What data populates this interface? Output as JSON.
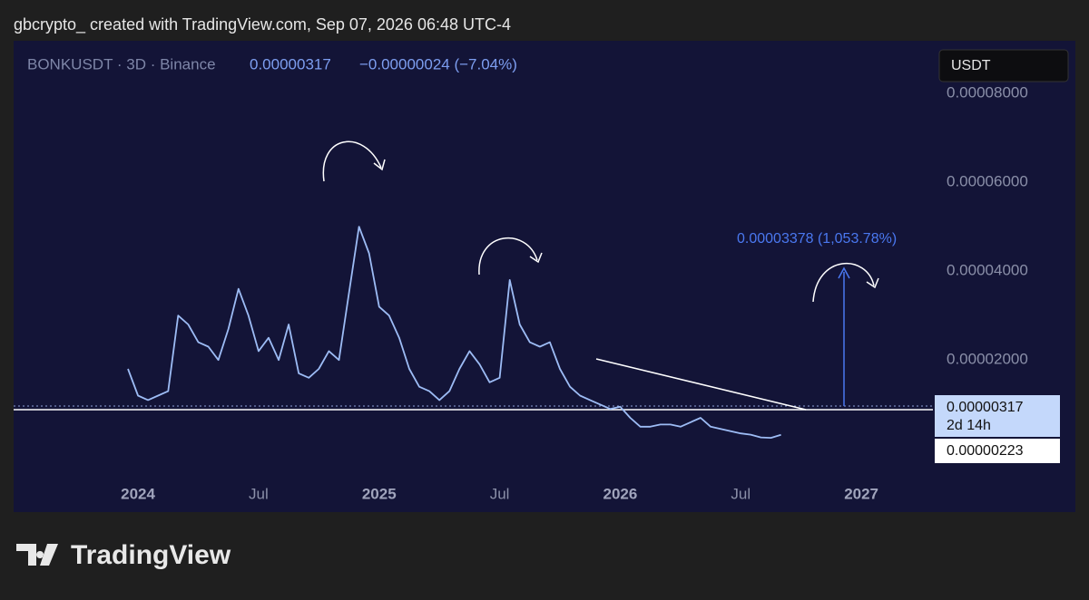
{
  "header": "gbcrypto_ created with TradingView.com, Sep 07, 2026 06:48 UTC-4",
  "footer": "TradingView",
  "chart_data": {
    "type": "line",
    "symbol": "BONKUSDT · 3D · Binance",
    "price": "0.00000317",
    "change": "−0.00000024 (−7.04%)",
    "currency": "USDT",
    "price_label": "0.00000317",
    "countdown": "2d 14h",
    "support_label": "0.00000223",
    "target_annotation": "0.00003378 (1,053.78%)",
    "categories": [
      null,
      "2024",
      null,
      null,
      null,
      null,
      null,
      null,
      null,
      null,
      null,
      null,
      null,
      "Jul",
      null,
      null,
      null,
      null,
      null,
      null,
      null,
      null,
      null,
      null,
      null,
      "2025",
      null,
      null,
      null,
      null,
      null,
      null,
      null,
      null,
      null,
      null,
      null,
      "Jul",
      null,
      null,
      null,
      null,
      null,
      null,
      null,
      null,
      null,
      null,
      null,
      "2026",
      null,
      null,
      null,
      null,
      null,
      null,
      null,
      null,
      null,
      null,
      null,
      "Jul",
      null,
      null,
      null,
      null,
      null,
      null,
      null,
      null,
      null,
      null,
      null,
      "2027",
      null,
      null,
      null,
      null,
      null
    ],
    "series": [
      {
        "name": "BONKUSDT",
        "color": "#9dbcf5",
        "values": [
          1.8e-05,
          1.2e-05,
          1.1e-05,
          1.2e-05,
          1.3e-05,
          3e-05,
          2.8e-05,
          2.4e-05,
          2.3e-05,
          2e-05,
          2.7e-05,
          3.6e-05,
          3e-05,
          2.2e-05,
          2.5e-05,
          2e-05,
          2.8e-05,
          1.7e-05,
          1.6e-05,
          1.8e-05,
          2.2e-05,
          2e-05,
          3.5e-05,
          5e-05,
          4.4e-05,
          3.2e-05,
          3e-05,
          2.5e-05,
          1.8e-05,
          1.4e-05,
          1.3e-05,
          1.1e-05,
          1.3e-05,
          1.8e-05,
          2.2e-05,
          1.9e-05,
          1.5e-05,
          1.6e-05,
          3.8e-05,
          2.8e-05,
          2.4e-05,
          2.3e-05,
          2.4e-05,
          1.8e-05,
          1.4e-05,
          1.2e-05,
          1.1e-05,
          1e-05,
          9e-06,
          9.5e-06,
          7e-06,
          5e-06,
          5e-06,
          5.5e-06,
          5.5e-06,
          5e-06,
          6e-06,
          7e-06,
          5e-06,
          4.5e-06,
          4e-06,
          3.5e-06,
          3.2e-06,
          2.6e-06,
          2.5e-06,
          3.17e-06,
          null,
          null,
          null,
          null,
          null,
          null,
          null,
          null,
          null,
          null,
          null,
          null,
          null
        ]
      }
    ],
    "ylim": [
      -1.42e-05,
      9.18e-05
    ],
    "yticks": [
      {
        "value": 2e-05,
        "label": "0.00002000"
      },
      {
        "value": 4e-05,
        "label": "0.00004000"
      },
      {
        "value": 6e-05,
        "label": "0.00006000"
      },
      {
        "value": 8e-05,
        "label": "0.00008000"
      }
    ],
    "grid": false
  }
}
